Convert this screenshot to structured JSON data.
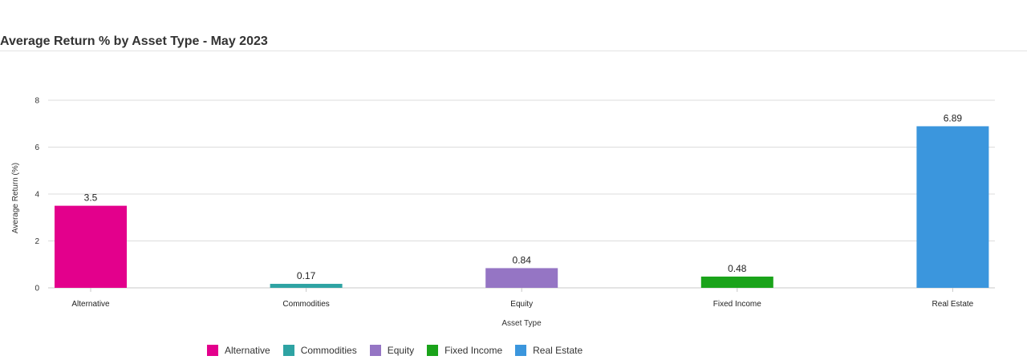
{
  "chart_data": {
    "type": "bar",
    "title": "Average Return % by Asset Type - May 2023",
    "xlabel": "Asset Type",
    "ylabel": "Average Return (%)",
    "categories": [
      "Alternative",
      "Commodities",
      "Equity",
      "Fixed Income",
      "Real Estate"
    ],
    "values": [
      3.5,
      0.17,
      0.84,
      0.48,
      6.89
    ],
    "value_labels": [
      "3.5",
      "0.17",
      "0.84",
      "0.48",
      "6.89"
    ],
    "colors": [
      "#e3008c",
      "#2ea3a3",
      "#9575c4",
      "#1aa31a",
      "#3b96dd"
    ],
    "ylim": [
      0,
      8
    ],
    "yticks": [
      "0",
      "2",
      "4",
      "6",
      "8"
    ],
    "grid": true,
    "legend_position": "bottom"
  }
}
